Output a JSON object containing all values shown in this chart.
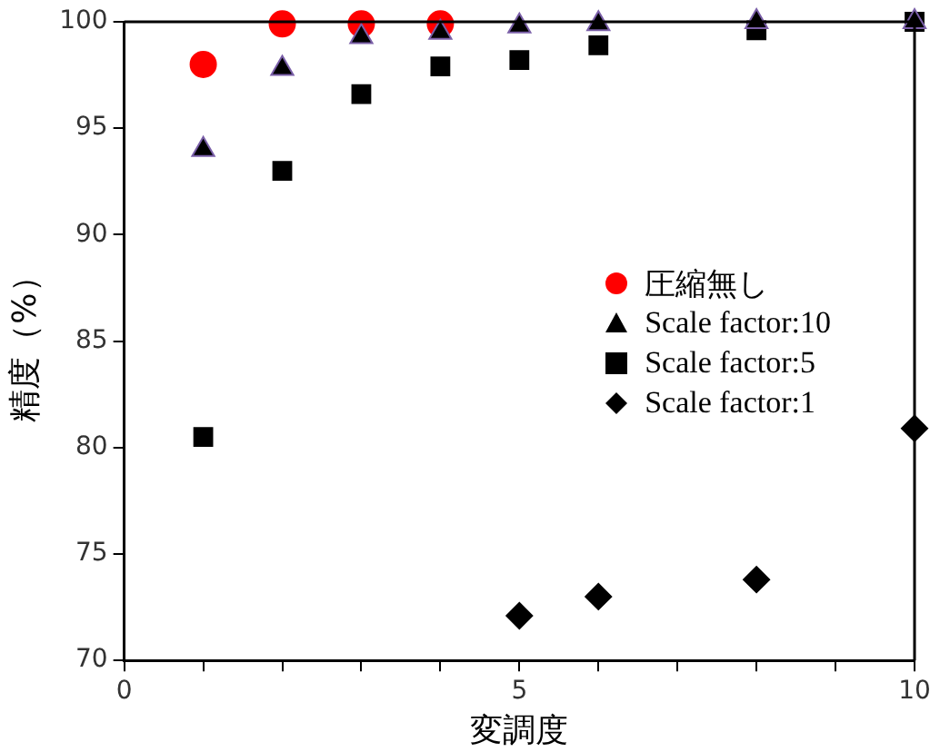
{
  "chart_data": {
    "type": "scatter",
    "xlabel": "変調度",
    "ylabel": "精度（%）",
    "xlim": [
      0,
      10
    ],
    "ylim": [
      70,
      100
    ],
    "xticks": [
      0,
      {
        "value": 1,
        "label": null
      },
      {
        "value": 2,
        "label": null
      },
      {
        "value": 3,
        "label": null
      },
      {
        "value": 4,
        "label": null
      },
      5,
      {
        "value": 6,
        "label": null
      },
      {
        "value": 7,
        "label": null
      },
      {
        "value": 8,
        "label": null
      },
      {
        "value": 9,
        "label": null
      },
      10
    ],
    "yticks": [
      70,
      75,
      80,
      85,
      90,
      95,
      100
    ],
    "grid": false,
    "legend": "right",
    "series": [
      {
        "name": "圧縮無し",
        "color": "#ff0000",
        "marker": "circle",
        "x": [
          1,
          2,
          3,
          4
        ],
        "values": [
          98,
          99.9,
          99.9,
          99.9
        ]
      },
      {
        "name": "Scale factor:10",
        "color": "#000000",
        "marker": "triangle",
        "x": [
          1,
          2,
          3,
          4,
          5,
          6,
          8,
          10
        ],
        "values": [
          94,
          97.8,
          99.3,
          99.5,
          99.8,
          99.9,
          100,
          100
        ]
      },
      {
        "name": "Scale factor:5",
        "color": "#000000",
        "marker": "square",
        "x": [
          1,
          2,
          3,
          4,
          5,
          6,
          8,
          10
        ],
        "values": [
          80.5,
          93,
          96.6,
          97.9,
          98.2,
          98.9,
          99.6,
          100
        ]
      },
      {
        "name": "Scale factor:1",
        "color": "#000000",
        "marker": "diamond",
        "x": [
          5,
          6,
          8,
          10
        ],
        "values": [
          72.1,
          73,
          73.8,
          80.9
        ]
      }
    ]
  }
}
